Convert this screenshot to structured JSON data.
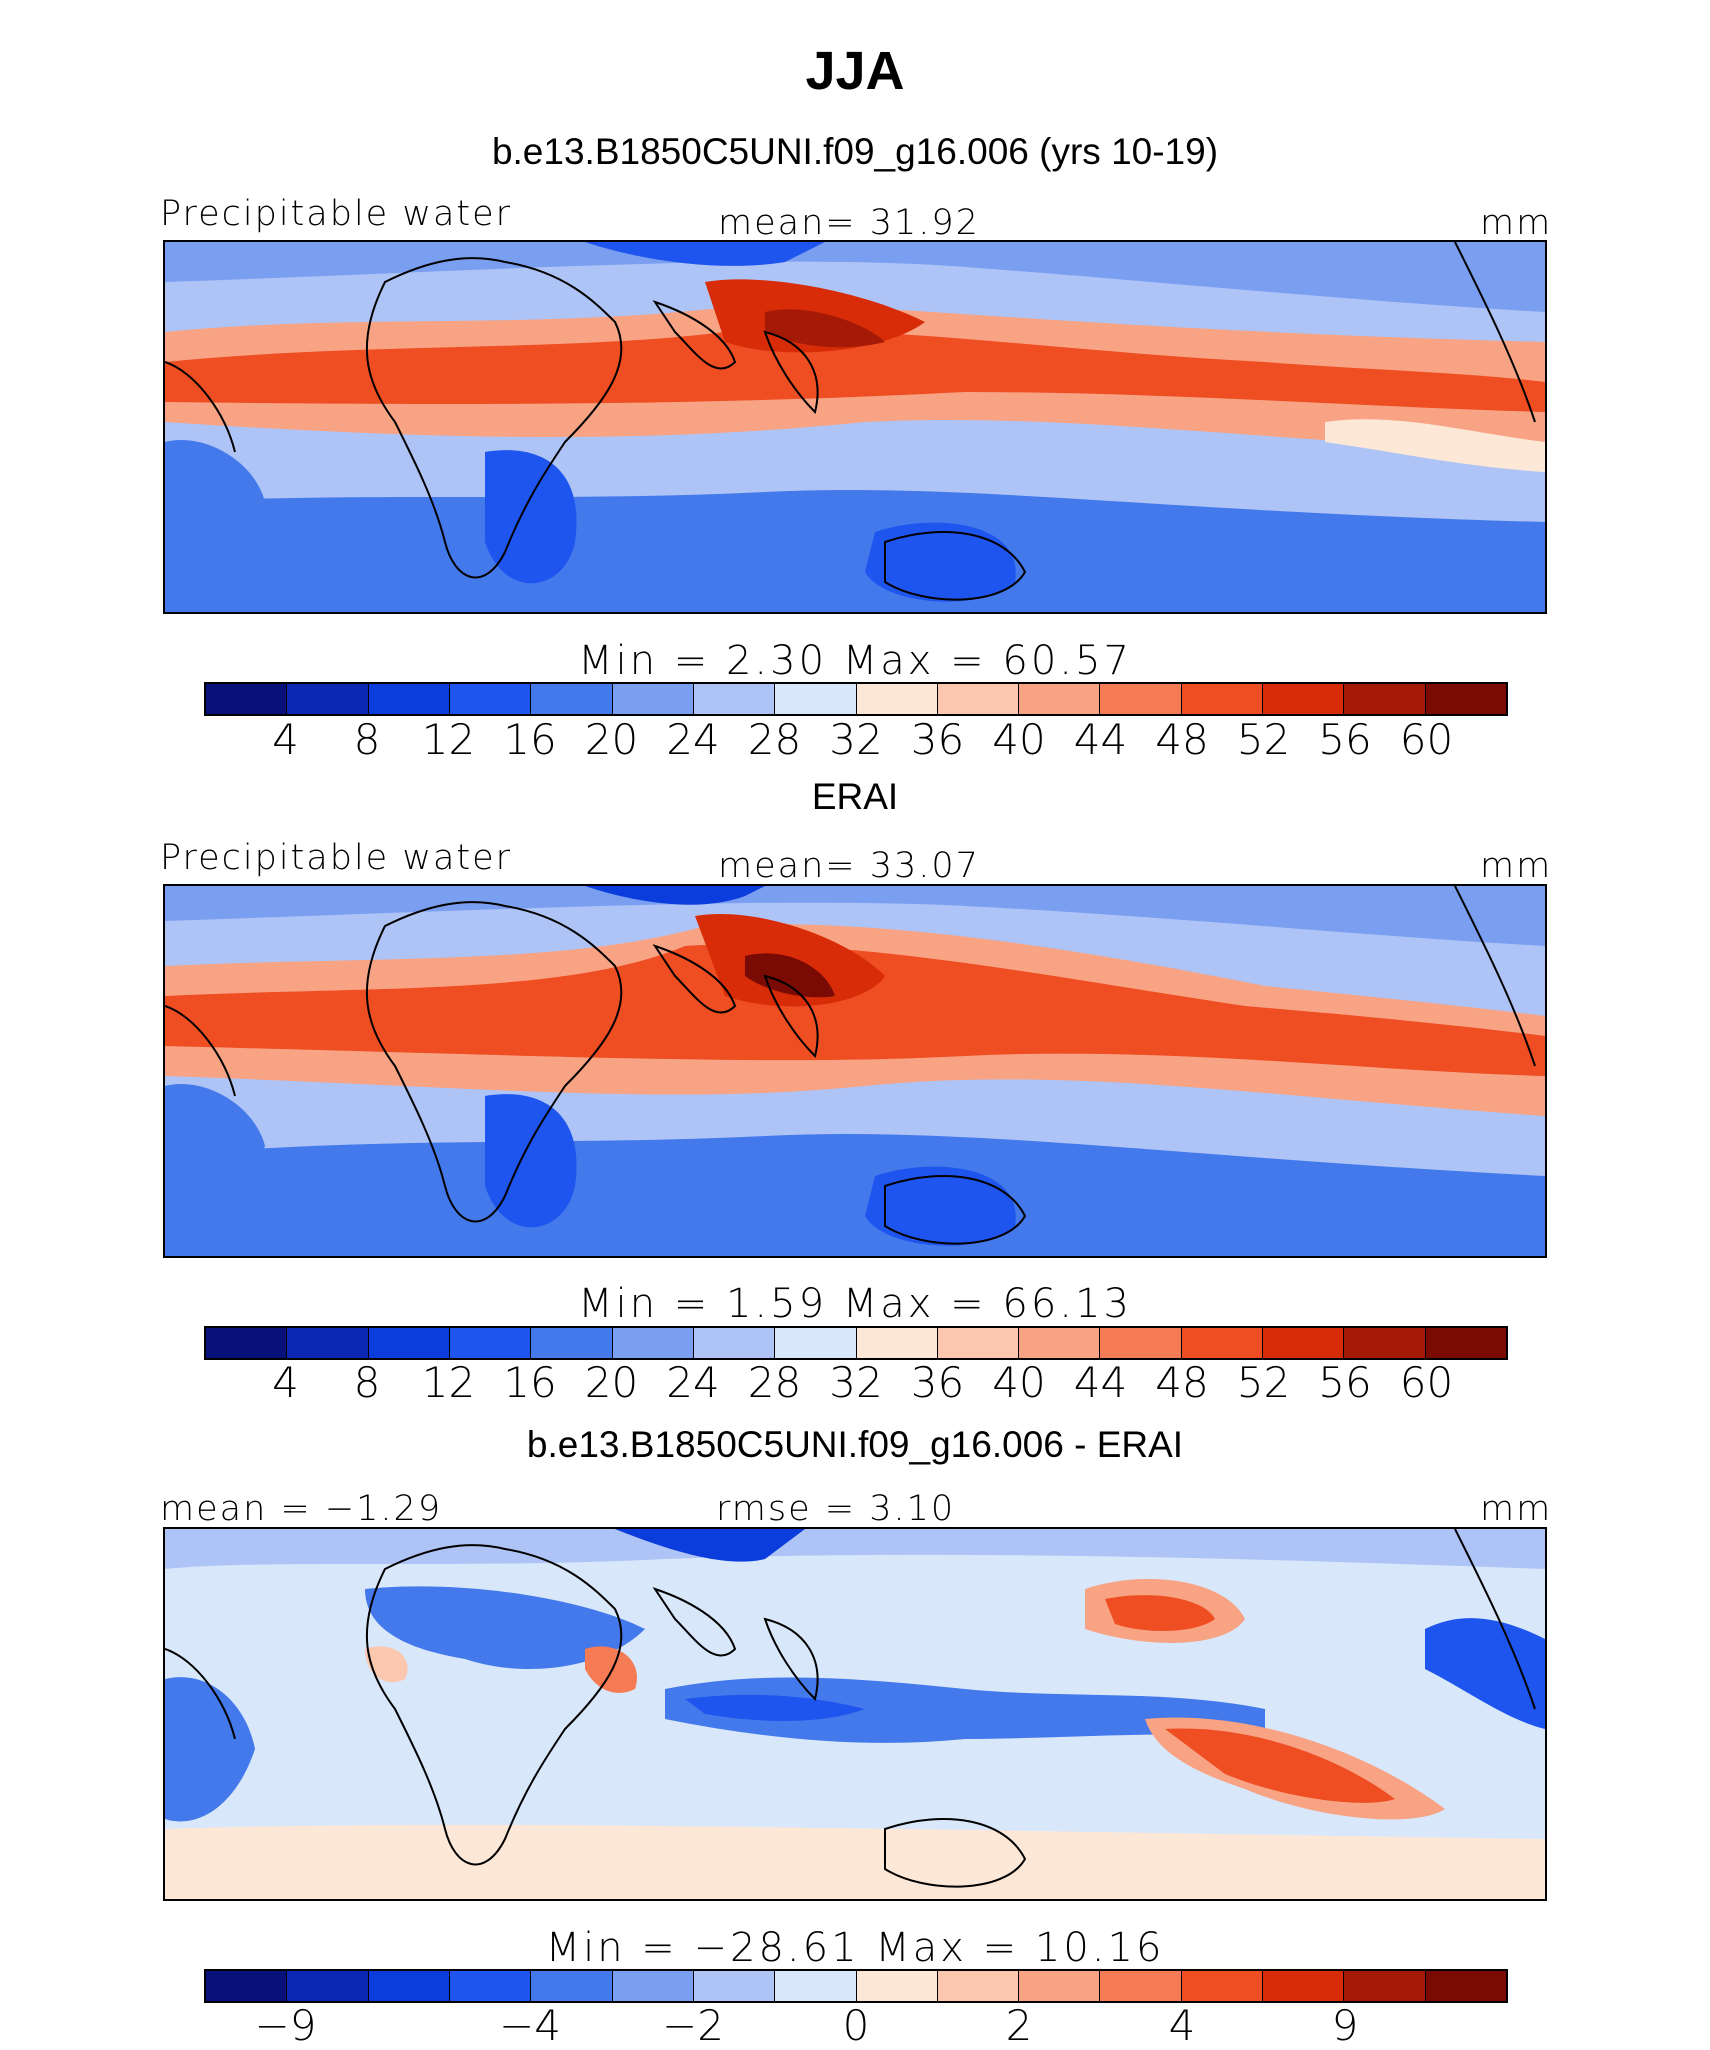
{
  "title": "JJA",
  "colors": {
    "diverging_16": [
      "#08107a",
      "#0a28b4",
      "#0b3cdc",
      "#1e55ee",
      "#4379eb",
      "#7b9ff0",
      "#aec4f6",
      "#d9e7fb",
      "#fde7d6",
      "#fbc7ae",
      "#f7a384",
      "#f47b53",
      "#ef4d22",
      "#d72c07",
      "#a51a06",
      "#7a0a04"
    ],
    "land_outline": "#000000"
  },
  "panels": [
    {
      "title": "b.e13.B1850C5UNI.f09_g16.006 (yrs 10-19)",
      "left_label": "Precipitable water",
      "center_label": "mean=   31.92",
      "right_label": "mm",
      "minmax": "Min  =     2.30  Max  =    60.57",
      "ticks": [
        "4",
        "8",
        "12",
        "16",
        "20",
        "24",
        "28",
        "32",
        "36",
        "40",
        "44",
        "48",
        "52",
        "56",
        "60"
      ]
    },
    {
      "title": "ERAI",
      "left_label": "Precipitable water",
      "center_label": "mean=   33.07",
      "right_label": "mm",
      "minmax": "Min  =     1.59  Max  =    66.13",
      "ticks": [
        "4",
        "8",
        "12",
        "16",
        "20",
        "24",
        "28",
        "32",
        "36",
        "40",
        "44",
        "48",
        "52",
        "56",
        "60"
      ]
    },
    {
      "title": "b.e13.B1850C5UNI.f09_g16.006 - ERAI",
      "left_label": "mean =   −1.29",
      "center_label": "rmse =    3.10",
      "right_label": "mm",
      "minmax": "Min  =  −28.61  Max  =    10.16",
      "ticks": [
        "−9",
        "−4",
        "−2",
        "0",
        "2",
        "4",
        "9"
      ]
    }
  ]
}
